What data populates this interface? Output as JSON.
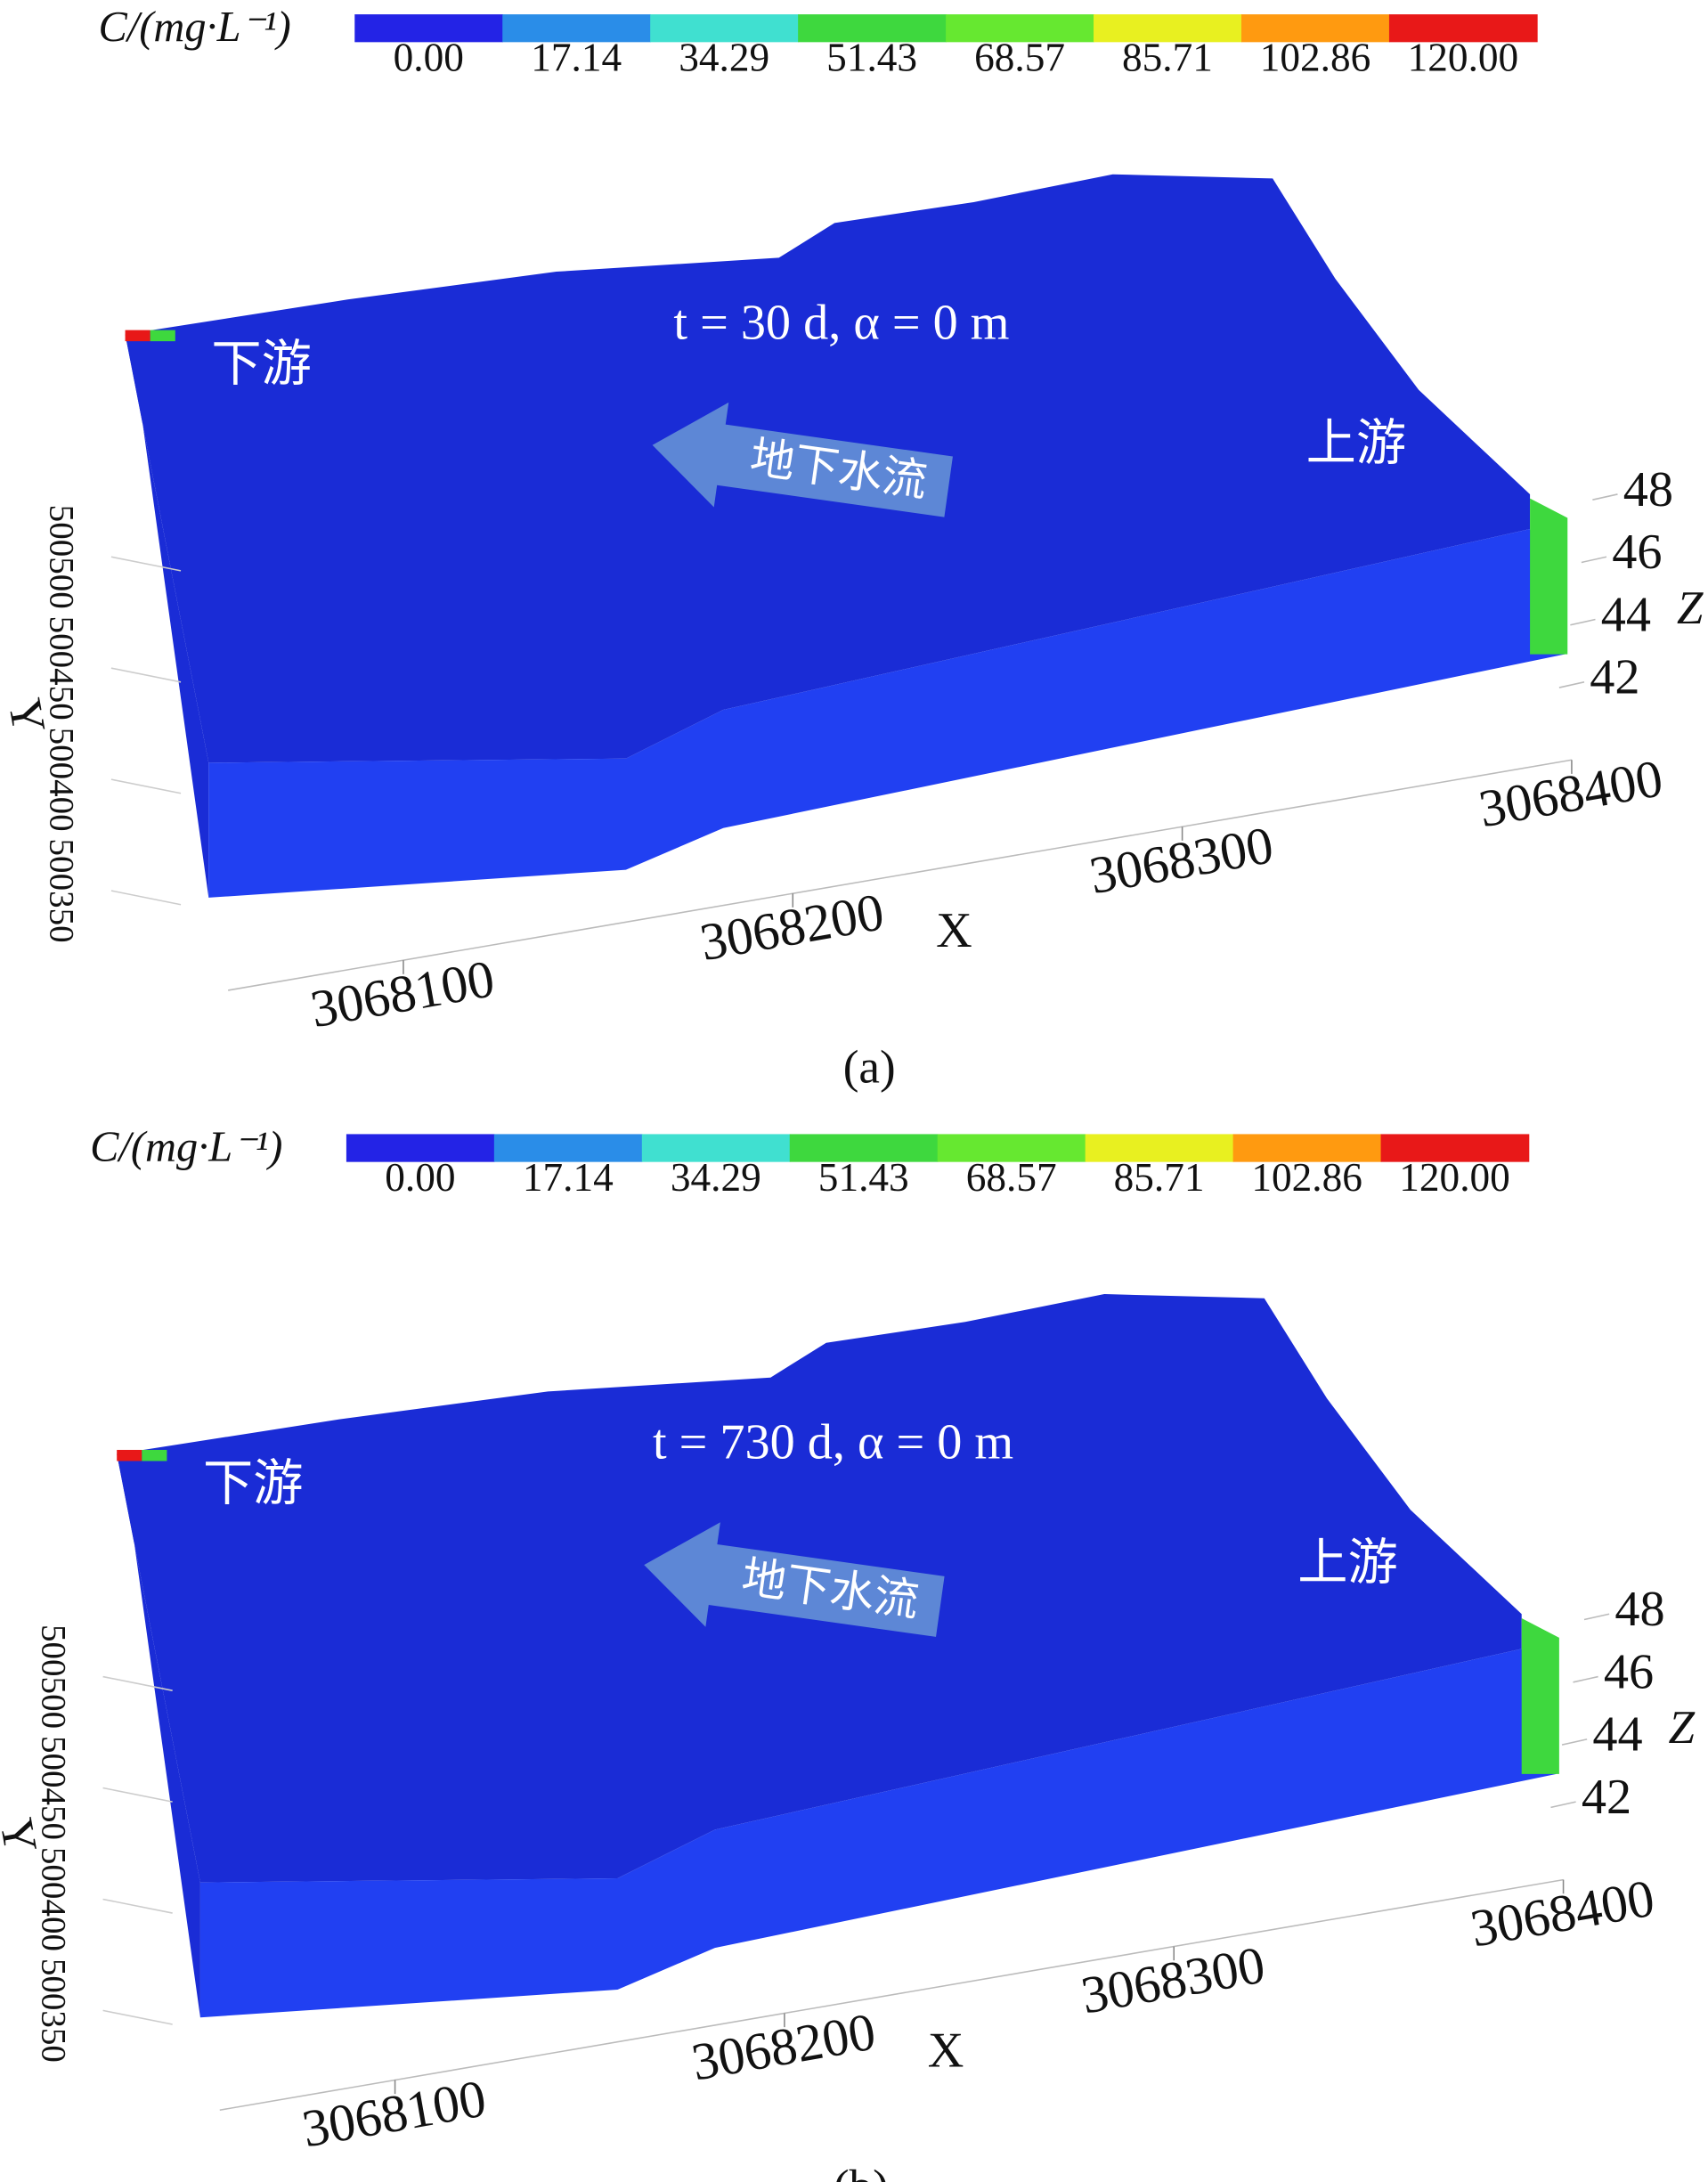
{
  "chart_data": [
    {
      "type": "block3d",
      "panel_label": "(a)",
      "annotation": "t = 30 d, α = 0 m",
      "downstream_label": "下游",
      "upstream_label": "上游",
      "flow_label": "地下水流",
      "top_color": "#1a2cd6",
      "front_color": "#2140f2",
      "colorbar": {
        "label": "C/(mg·L⁻¹)",
        "colors": [
          "#2323e6",
          "#2a8de8",
          "#40e0d0",
          "#3ed83e",
          "#66e830",
          "#e8f020",
          "#ff9a10",
          "#e81818"
        ],
        "ticks": [
          {
            "value": 0,
            "label": "0.00"
          },
          {
            "value": 17.14,
            "label": "17.14"
          },
          {
            "value": 34.29,
            "label": "34.29"
          },
          {
            "value": 51.43,
            "label": "51.43"
          },
          {
            "value": 68.57,
            "label": "68.57"
          },
          {
            "value": 85.71,
            "label": "85.71"
          },
          {
            "value": 102.86,
            "label": "102.86"
          },
          {
            "value": 120,
            "label": "120.00"
          }
        ]
      },
      "xlabel": "X",
      "ylabel": "Y",
      "zlabel": "Z",
      "xlim": [
        3068055,
        3068400
      ],
      "xticks": [
        3068100,
        3068200,
        3068300,
        3068400
      ],
      "ylim": [
        500340,
        500520
      ],
      "yticks": [
        500350,
        500400,
        500450,
        500500
      ],
      "zlim": [
        42,
        48
      ],
      "zticks": [
        42,
        44,
        46,
        48
      ]
    },
    {
      "type": "block3d",
      "panel_label": "(b)",
      "annotation": "t = 730 d, α = 0 m",
      "downstream_label": "下游",
      "upstream_label": "上游",
      "flow_label": "地下水流",
      "top_color": "#1a2cd6",
      "front_color": "#2140f2",
      "colorbar": {
        "label": "C/(mg·L⁻¹)",
        "colors": [
          "#2323e6",
          "#2a8de8",
          "#40e0d0",
          "#3ed83e",
          "#66e830",
          "#e8f020",
          "#ff9a10",
          "#e81818"
        ],
        "ticks": [
          {
            "value": 0,
            "label": "0.00"
          },
          {
            "value": 17.14,
            "label": "17.14"
          },
          {
            "value": 34.29,
            "label": "34.29"
          },
          {
            "value": 51.43,
            "label": "51.43"
          },
          {
            "value": 68.57,
            "label": "68.57"
          },
          {
            "value": 85.71,
            "label": "85.71"
          },
          {
            "value": 102.86,
            "label": "102.86"
          },
          {
            "value": 120,
            "label": "120.00"
          }
        ]
      },
      "xlabel": "X",
      "ylabel": "Y",
      "zlabel": "Z",
      "xlim": [
        3068055,
        3068400
      ],
      "xticks": [
        3068100,
        3068200,
        3068300,
        3068400
      ],
      "ylim": [
        500340,
        500520
      ],
      "yticks": [
        500350,
        500400,
        500450,
        500500
      ],
      "zlim": [
        42,
        48
      ],
      "zticks": [
        42,
        44,
        46,
        48
      ]
    }
  ]
}
